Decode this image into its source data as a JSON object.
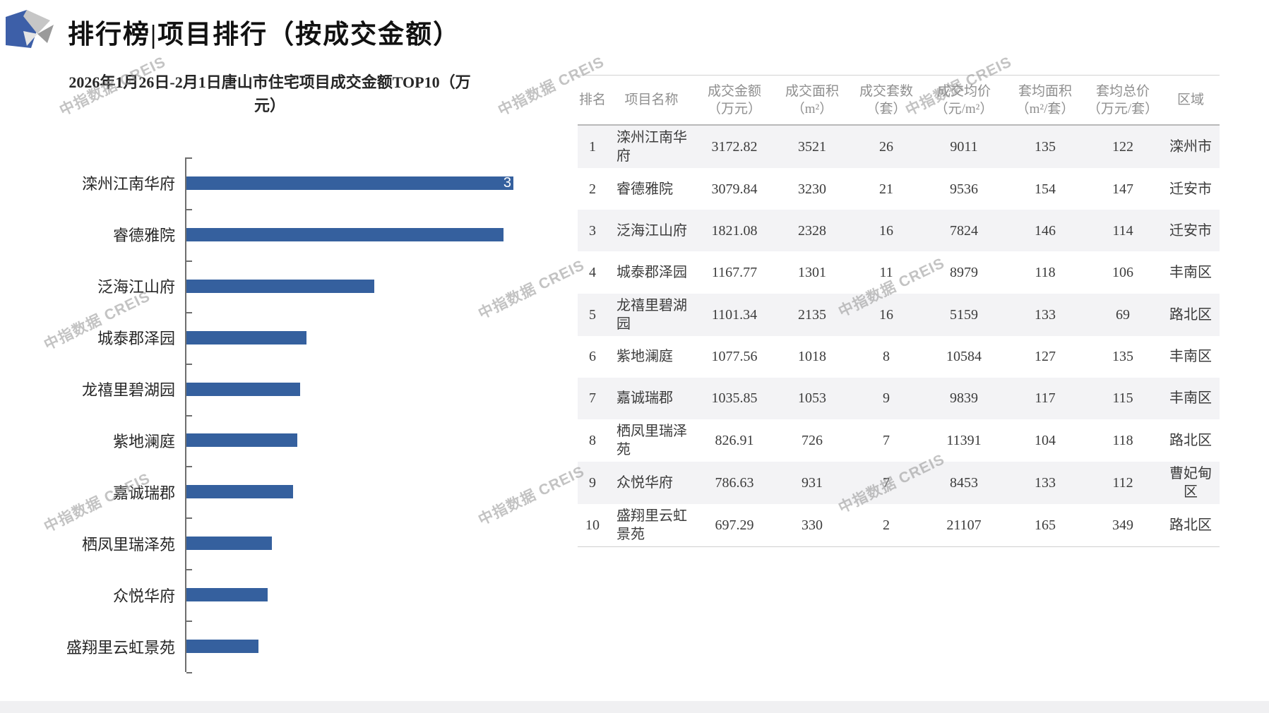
{
  "page": {
    "title": "排行榜|项目排行（按成交金额）",
    "watermark": "中指数据 CREIS"
  },
  "chart_data": {
    "type": "bar",
    "orientation": "horizontal",
    "title": "2026年1月26日-2月1日唐山市住宅项目成交金额TOP10（万元）",
    "categories": [
      "滦州江南华府",
      "睿德雅院",
      "泛海江山府",
      "城泰郡泽园",
      "龙禧里碧湖园",
      "紫地澜庭",
      "嘉诚瑞郡",
      "栖凤里瑞泽苑",
      "众悦华府",
      "盛翔里云虹景苑"
    ],
    "values": [
      3172.82,
      3079.84,
      1821.08,
      1167.77,
      1101.34,
      1077.56,
      1035.85,
      826.91,
      786.63,
      697.29
    ],
    "xlabel": "",
    "ylabel": "",
    "xlim": [
      0,
      3200
    ],
    "grid": false,
    "legend": false,
    "bar_color": "#35609e",
    "visible_data_labels": {
      "first_bar": "3"
    }
  },
  "table": {
    "columns": [
      {
        "label": "排名",
        "unit": ""
      },
      {
        "label": "项目名称",
        "unit": ""
      },
      {
        "label": "成交金额",
        "unit": "（万元）"
      },
      {
        "label": "成交面积",
        "unit": "（m²）"
      },
      {
        "label": "成交套数",
        "unit": "（套）"
      },
      {
        "label": "成交均价",
        "unit": "（元/m²）"
      },
      {
        "label": "套均面积",
        "unit": "（m²/套）"
      },
      {
        "label": "套均总价",
        "unit": "（万元/套）"
      },
      {
        "label": "区域",
        "unit": ""
      }
    ],
    "rows": [
      [
        "1",
        "滦州江南华府",
        "3172.82",
        "3521",
        "26",
        "9011",
        "135",
        "122",
        "滦州市"
      ],
      [
        "2",
        "睿德雅院",
        "3079.84",
        "3230",
        "21",
        "9536",
        "154",
        "147",
        "迁安市"
      ],
      [
        "3",
        "泛海江山府",
        "1821.08",
        "2328",
        "16",
        "7824",
        "146",
        "114",
        "迁安市"
      ],
      [
        "4",
        "城泰郡泽园",
        "1167.77",
        "1301",
        "11",
        "8979",
        "118",
        "106",
        "丰南区"
      ],
      [
        "5",
        "龙禧里碧湖园",
        "1101.34",
        "2135",
        "16",
        "5159",
        "133",
        "69",
        "路北区"
      ],
      [
        "6",
        "紫地澜庭",
        "1077.56",
        "1018",
        "8",
        "10584",
        "127",
        "135",
        "丰南区"
      ],
      [
        "7",
        "嘉诚瑞郡",
        "1035.85",
        "1053",
        "9",
        "9839",
        "117",
        "115",
        "丰南区"
      ],
      [
        "8",
        "栖凤里瑞泽苑",
        "826.91",
        "726",
        "7",
        "11391",
        "104",
        "118",
        "路北区"
      ],
      [
        "9",
        "众悦华府",
        "786.63",
        "931",
        "7",
        "8453",
        "133",
        "112",
        "曹妃甸区"
      ],
      [
        "10",
        "盛翔里云虹景苑",
        "697.29",
        "330",
        "2",
        "21107",
        "165",
        "349",
        "路北区"
      ]
    ]
  },
  "colors": {
    "bar": "#35609e",
    "logo_blue": "#3d5fa8",
    "zebra": "#f3f3f5",
    "header_text": "#8f8f8f",
    "body_text": "#3c3c3c",
    "watermark": "#919191"
  }
}
